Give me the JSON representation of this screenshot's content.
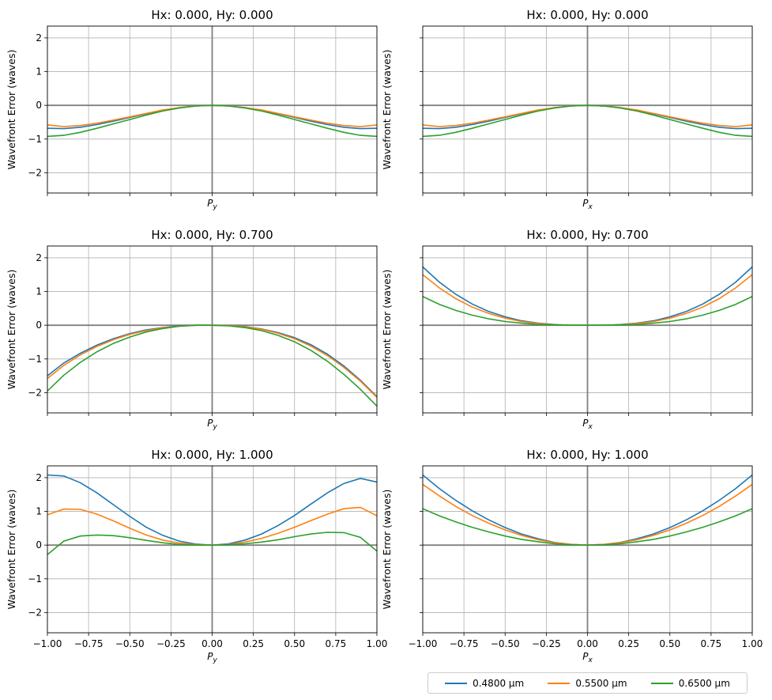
{
  "chart_data": [
    {
      "type": "line",
      "title": "Hx: 0.000, Hy: 0.000",
      "xlabel": "P",
      "xlabel_sub": "y",
      "ylabel": "Wavefront Error (waves)",
      "xlim": [
        -1.0,
        1.0
      ],
      "ylim": [
        -2.6,
        2.35
      ],
      "series": [
        {
          "name": "0.4800 µm",
          "color": "#1f77b4",
          "x": [
            -1,
            -0.9,
            -0.8,
            -0.7,
            -0.6,
            -0.5,
            -0.4,
            -0.3,
            -0.2,
            -0.1,
            0,
            0.1,
            0.2,
            0.3,
            0.4,
            0.5,
            0.6,
            0.7,
            0.8,
            0.9,
            1
          ],
          "y": [
            -0.68,
            -0.69,
            -0.65,
            -0.57,
            -0.47,
            -0.36,
            -0.25,
            -0.15,
            -0.07,
            -0.02,
            0,
            -0.02,
            -0.07,
            -0.15,
            -0.25,
            -0.36,
            -0.47,
            -0.57,
            -0.65,
            -0.69,
            -0.68
          ]
        },
        {
          "name": "0.5500 µm",
          "color": "#ff7f0e",
          "x": [
            -1,
            -0.9,
            -0.8,
            -0.7,
            -0.6,
            -0.5,
            -0.4,
            -0.3,
            -0.2,
            -0.1,
            0,
            0.1,
            0.2,
            0.3,
            0.4,
            0.5,
            0.6,
            0.7,
            0.8,
            0.9,
            1
          ],
          "y": [
            -0.58,
            -0.63,
            -0.6,
            -0.53,
            -0.44,
            -0.34,
            -0.24,
            -0.14,
            -0.07,
            -0.02,
            0,
            -0.02,
            -0.07,
            -0.14,
            -0.24,
            -0.34,
            -0.44,
            -0.53,
            -0.6,
            -0.63,
            -0.58
          ]
        },
        {
          "name": "0.6500 µm",
          "color": "#2ca02c",
          "x": [
            -1,
            -0.9,
            -0.8,
            -0.7,
            -0.6,
            -0.5,
            -0.4,
            -0.3,
            -0.2,
            -0.1,
            0,
            0.1,
            0.2,
            0.3,
            0.4,
            0.5,
            0.6,
            0.7,
            0.8,
            0.9,
            1
          ],
          "y": [
            -0.92,
            -0.89,
            -0.8,
            -0.68,
            -0.55,
            -0.42,
            -0.29,
            -0.17,
            -0.08,
            -0.02,
            0,
            -0.02,
            -0.08,
            -0.17,
            -0.29,
            -0.42,
            -0.55,
            -0.68,
            -0.8,
            -0.89,
            -0.92
          ]
        }
      ]
    },
    {
      "type": "line",
      "title": "Hx: 0.000, Hy: 0.000",
      "xlabel": "P",
      "xlabel_sub": "x",
      "ylabel": "Wavefront Error (waves)",
      "xlim": [
        -1.0,
        1.0
      ],
      "ylim": [
        -2.6,
        2.35
      ],
      "series": [
        {
          "name": "0.4800 µm",
          "color": "#1f77b4",
          "x": [
            -1,
            -0.9,
            -0.8,
            -0.7,
            -0.6,
            -0.5,
            -0.4,
            -0.3,
            -0.2,
            -0.1,
            0,
            0.1,
            0.2,
            0.3,
            0.4,
            0.5,
            0.6,
            0.7,
            0.8,
            0.9,
            1
          ],
          "y": [
            -0.68,
            -0.69,
            -0.65,
            -0.57,
            -0.47,
            -0.36,
            -0.25,
            -0.15,
            -0.07,
            -0.02,
            0,
            -0.02,
            -0.07,
            -0.15,
            -0.25,
            -0.36,
            -0.47,
            -0.57,
            -0.65,
            -0.69,
            -0.68
          ]
        },
        {
          "name": "0.5500 µm",
          "color": "#ff7f0e",
          "x": [
            -1,
            -0.9,
            -0.8,
            -0.7,
            -0.6,
            -0.5,
            -0.4,
            -0.3,
            -0.2,
            -0.1,
            0,
            0.1,
            0.2,
            0.3,
            0.4,
            0.5,
            0.6,
            0.7,
            0.8,
            0.9,
            1
          ],
          "y": [
            -0.58,
            -0.63,
            -0.6,
            -0.53,
            -0.44,
            -0.34,
            -0.24,
            -0.14,
            -0.07,
            -0.02,
            0,
            -0.02,
            -0.07,
            -0.14,
            -0.24,
            -0.34,
            -0.44,
            -0.53,
            -0.6,
            -0.63,
            -0.58
          ]
        },
        {
          "name": "0.6500 µm",
          "color": "#2ca02c",
          "x": [
            -1,
            -0.9,
            -0.8,
            -0.7,
            -0.6,
            -0.5,
            -0.4,
            -0.3,
            -0.2,
            -0.1,
            0,
            0.1,
            0.2,
            0.3,
            0.4,
            0.5,
            0.6,
            0.7,
            0.8,
            0.9,
            1
          ],
          "y": [
            -0.92,
            -0.89,
            -0.8,
            -0.68,
            -0.55,
            -0.42,
            -0.29,
            -0.17,
            -0.08,
            -0.02,
            0,
            -0.02,
            -0.08,
            -0.17,
            -0.29,
            -0.42,
            -0.55,
            -0.68,
            -0.8,
            -0.89,
            -0.92
          ]
        }
      ]
    },
    {
      "type": "line",
      "title": "Hx: 0.000, Hy: 0.700",
      "xlabel": "P",
      "xlabel_sub": "y",
      "ylabel": "Wavefront Error (waves)",
      "xlim": [
        -1.0,
        1.0
      ],
      "ylim": [
        -2.6,
        2.35
      ],
      "series": [
        {
          "name": "0.4800 µm",
          "color": "#1f77b4",
          "x": [
            -1,
            -0.9,
            -0.8,
            -0.7,
            -0.6,
            -0.5,
            -0.4,
            -0.3,
            -0.2,
            -0.1,
            0,
            0.1,
            0.2,
            0.3,
            0.4,
            0.5,
            0.6,
            0.7,
            0.8,
            0.9,
            1
          ],
          "y": [
            -1.5,
            -1.12,
            -0.83,
            -0.59,
            -0.4,
            -0.25,
            -0.14,
            -0.07,
            -0.02,
            0,
            0,
            -0.01,
            -0.04,
            -0.11,
            -0.22,
            -0.37,
            -0.58,
            -0.86,
            -1.21,
            -1.63,
            -2.12
          ]
        },
        {
          "name": "0.5500 µm",
          "color": "#ff7f0e",
          "x": [
            -1,
            -0.9,
            -0.8,
            -0.7,
            -0.6,
            -0.5,
            -0.4,
            -0.3,
            -0.2,
            -0.1,
            0,
            0.1,
            0.2,
            0.3,
            0.4,
            0.5,
            0.6,
            0.7,
            0.8,
            0.9,
            1
          ],
          "y": [
            -1.58,
            -1.19,
            -0.88,
            -0.63,
            -0.43,
            -0.27,
            -0.16,
            -0.08,
            -0.03,
            0,
            0,
            -0.01,
            -0.05,
            -0.12,
            -0.24,
            -0.4,
            -0.62,
            -0.9,
            -1.25,
            -1.66,
            -2.14
          ]
        },
        {
          "name": "0.6500 µm",
          "color": "#2ca02c",
          "x": [
            -1,
            -0.9,
            -0.8,
            -0.7,
            -0.6,
            -0.5,
            -0.4,
            -0.3,
            -0.2,
            -0.1,
            0,
            0.1,
            0.2,
            0.3,
            0.4,
            0.5,
            0.6,
            0.7,
            0.8,
            0.9,
            1
          ],
          "y": [
            -1.95,
            -1.48,
            -1.1,
            -0.79,
            -0.54,
            -0.35,
            -0.2,
            -0.1,
            -0.03,
            0,
            0,
            -0.02,
            -0.07,
            -0.16,
            -0.3,
            -0.49,
            -0.75,
            -1.07,
            -1.46,
            -1.9,
            -2.4
          ]
        }
      ]
    },
    {
      "type": "line",
      "title": "Hx: 0.000, Hy: 0.700",
      "xlabel": "P",
      "xlabel_sub": "x",
      "ylabel": "Wavefront Error (waves)",
      "xlim": [
        -1.0,
        1.0
      ],
      "ylim": [
        -2.6,
        2.35
      ],
      "series": [
        {
          "name": "0.4800 µm",
          "color": "#1f77b4",
          "x": [
            -1,
            -0.9,
            -0.8,
            -0.7,
            -0.6,
            -0.5,
            -0.4,
            -0.3,
            -0.2,
            -0.1,
            0,
            0.1,
            0.2,
            0.3,
            0.4,
            0.5,
            0.6,
            0.7,
            0.8,
            0.9,
            1
          ],
          "y": [
            1.73,
            1.28,
            0.92,
            0.63,
            0.41,
            0.25,
            0.13,
            0.06,
            0.02,
            0,
            0,
            0,
            0.02,
            0.06,
            0.13,
            0.25,
            0.41,
            0.63,
            0.92,
            1.28,
            1.73
          ]
        },
        {
          "name": "0.5500 µm",
          "color": "#ff7f0e",
          "x": [
            -1,
            -0.9,
            -0.8,
            -0.7,
            -0.6,
            -0.5,
            -0.4,
            -0.3,
            -0.2,
            -0.1,
            0,
            0.1,
            0.2,
            0.3,
            0.4,
            0.5,
            0.6,
            0.7,
            0.8,
            0.9,
            1
          ],
          "y": [
            1.5,
            1.11,
            0.79,
            0.54,
            0.35,
            0.21,
            0.11,
            0.05,
            0.01,
            0,
            0,
            0,
            0.01,
            0.05,
            0.11,
            0.21,
            0.35,
            0.54,
            0.79,
            1.11,
            1.5
          ]
        },
        {
          "name": "0.6500 µm",
          "color": "#2ca02c",
          "x": [
            -1,
            -0.9,
            -0.8,
            -0.7,
            -0.6,
            -0.5,
            -0.4,
            -0.3,
            -0.2,
            -0.1,
            0,
            0.1,
            0.2,
            0.3,
            0.4,
            0.5,
            0.6,
            0.7,
            0.8,
            0.9,
            1
          ],
          "y": [
            0.85,
            0.62,
            0.44,
            0.3,
            0.19,
            0.11,
            0.06,
            0.02,
            0.01,
            0,
            0,
            0,
            0.01,
            0.02,
            0.06,
            0.11,
            0.19,
            0.3,
            0.44,
            0.62,
            0.85
          ]
        }
      ]
    },
    {
      "type": "line",
      "title": "Hx: 0.000, Hy: 1.000",
      "xlabel": "P",
      "xlabel_sub": "y",
      "ylabel": "Wavefront Error (waves)",
      "xlim": [
        -1.0,
        1.0
      ],
      "ylim": [
        -2.6,
        2.35
      ],
      "series": [
        {
          "name": "0.4800 µm",
          "color": "#1f77b4",
          "x": [
            -1,
            -0.9,
            -0.8,
            -0.7,
            -0.6,
            -0.5,
            -0.4,
            -0.3,
            -0.2,
            -0.1,
            0,
            0.1,
            0.2,
            0.3,
            0.4,
            0.5,
            0.6,
            0.7,
            0.8,
            0.9,
            1
          ],
          "y": [
            2.08,
            2.05,
            1.85,
            1.55,
            1.2,
            0.85,
            0.53,
            0.29,
            0.12,
            0.03,
            0,
            0.04,
            0.15,
            0.33,
            0.58,
            0.88,
            1.22,
            1.55,
            1.83,
            1.98,
            1.87
          ]
        },
        {
          "name": "0.5500 µm",
          "color": "#ff7f0e",
          "x": [
            -1,
            -0.9,
            -0.8,
            -0.7,
            -0.6,
            -0.5,
            -0.4,
            -0.3,
            -0.2,
            -0.1,
            0,
            0.1,
            0.2,
            0.3,
            0.4,
            0.5,
            0.6,
            0.7,
            0.8,
            0.9,
            1
          ],
          "y": [
            0.9,
            1.07,
            1.06,
            0.92,
            0.72,
            0.5,
            0.3,
            0.15,
            0.06,
            0.01,
            0,
            0.02,
            0.09,
            0.2,
            0.35,
            0.53,
            0.73,
            0.92,
            1.08,
            1.12,
            0.87
          ]
        },
        {
          "name": "0.6500 µm",
          "color": "#2ca02c",
          "x": [
            -1,
            -0.9,
            -0.8,
            -0.7,
            -0.6,
            -0.5,
            -0.4,
            -0.3,
            -0.2,
            -0.1,
            0,
            0.1,
            0.2,
            0.3,
            0.4,
            0.5,
            0.6,
            0.7,
            0.8,
            0.9,
            1
          ],
          "y": [
            -0.28,
            0.12,
            0.27,
            0.3,
            0.28,
            0.22,
            0.14,
            0.07,
            0.02,
            0,
            0,
            0.01,
            0.04,
            0.09,
            0.16,
            0.25,
            0.33,
            0.38,
            0.37,
            0.23,
            -0.18
          ]
        }
      ]
    },
    {
      "type": "line",
      "title": "Hx: 0.000, Hy: 1.000",
      "xlabel": "P",
      "xlabel_sub": "x",
      "ylabel": "Wavefront Error (waves)",
      "xlim": [
        -1.0,
        1.0
      ],
      "ylim": [
        -2.6,
        2.35
      ],
      "series": [
        {
          "name": "0.4800 µm",
          "color": "#1f77b4",
          "x": [
            -1,
            -0.9,
            -0.8,
            -0.7,
            -0.6,
            -0.5,
            -0.4,
            -0.3,
            -0.2,
            -0.1,
            0,
            0.1,
            0.2,
            0.3,
            0.4,
            0.5,
            0.6,
            0.7,
            0.8,
            0.9,
            1
          ],
          "y": [
            2.08,
            1.68,
            1.33,
            1.02,
            0.75,
            0.52,
            0.33,
            0.19,
            0.08,
            0.02,
            0,
            0.02,
            0.08,
            0.19,
            0.33,
            0.52,
            0.75,
            1.02,
            1.33,
            1.68,
            2.08
          ]
        },
        {
          "name": "0.5500 µm",
          "color": "#ff7f0e",
          "x": [
            -1,
            -0.9,
            -0.8,
            -0.7,
            -0.6,
            -0.5,
            -0.4,
            -0.3,
            -0.2,
            -0.1,
            0,
            0.1,
            0.2,
            0.3,
            0.4,
            0.5,
            0.6,
            0.7,
            0.8,
            0.9,
            1
          ],
          "y": [
            1.8,
            1.46,
            1.15,
            0.88,
            0.65,
            0.45,
            0.29,
            0.16,
            0.07,
            0.02,
            0,
            0.02,
            0.07,
            0.16,
            0.29,
            0.45,
            0.65,
            0.88,
            1.15,
            1.46,
            1.8
          ]
        },
        {
          "name": "0.6500 µm",
          "color": "#2ca02c",
          "x": [
            -1,
            -0.9,
            -0.8,
            -0.7,
            -0.6,
            -0.5,
            -0.4,
            -0.3,
            -0.2,
            -0.1,
            0,
            0.1,
            0.2,
            0.3,
            0.4,
            0.5,
            0.6,
            0.7,
            0.8,
            0.9,
            1
          ],
          "y": [
            1.08,
            0.87,
            0.69,
            0.53,
            0.39,
            0.27,
            0.17,
            0.1,
            0.04,
            0.01,
            0,
            0.01,
            0.04,
            0.1,
            0.17,
            0.27,
            0.39,
            0.53,
            0.69,
            0.87,
            1.08
          ]
        }
      ]
    }
  ],
  "axes": {
    "xticks": [
      -1.0,
      -0.75,
      -0.5,
      -0.25,
      0,
      0.25,
      0.5,
      0.75,
      1.0
    ],
    "xtick_labels": [
      "−1.00",
      "−0.75",
      "−0.50",
      "−0.25",
      "0.00",
      "0.25",
      "0.50",
      "0.75",
      "1.00"
    ],
    "yticks": [
      -2,
      -1,
      0,
      1,
      2
    ],
    "ytick_labels": [
      "−2",
      "−1",
      "0",
      "1",
      "2"
    ],
    "grid": true
  },
  "legend": {
    "placement": "bottom-right",
    "entries": [
      {
        "label": "0.4800 µm",
        "color": "#1f77b4"
      },
      {
        "label": "0.5500 µm",
        "color": "#ff7f0e"
      },
      {
        "label": "0.6500 µm",
        "color": "#2ca02c"
      }
    ]
  }
}
